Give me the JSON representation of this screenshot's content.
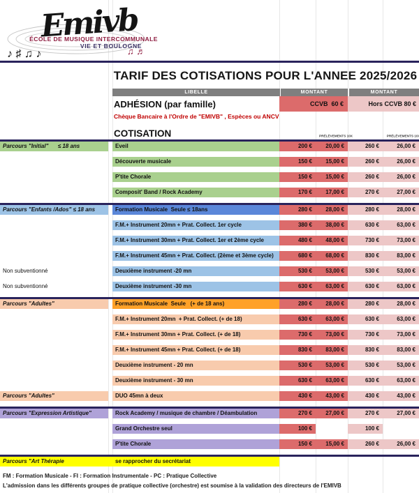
{
  "logo": {
    "script": "Emivb",
    "line1": "ÉCOLE DE MUSIQUE INTERCOMMUNALE",
    "line2": "VIE ET BOULOGNE",
    "notes_black": "♪ ♯  ♫ ♪",
    "notes_maroon": "♫ ♬"
  },
  "title": "TARIF DES COTISATIONS POUR L'ANNEE 2025/2026",
  "header": {
    "libelle": "LIBELLE",
    "montant1": "MONTANT",
    "montant2": "MONTANT"
  },
  "adhesion": {
    "label": "ADHÉSION (par famille)",
    "ccvb": "CCVB  60 €",
    "hors_ccvb": "Hors CCVB 80 €",
    "note": "Chèque Bancaire à l'Ordre de \"EMIVB\" , Espèces ou ANCV"
  },
  "cotisation": {
    "label": "COTISATION",
    "prelevements": "PRÉLÈVEMENTS 10X"
  },
  "colors": {
    "navy_border": "#29235C",
    "header_gray": "#7F7F7F",
    "ccvb_cell": "#DC6B6B",
    "hors_cell": "#EDC7C7",
    "green": "#A9D08E",
    "blue_dark": "#5B87D9",
    "blue_light": "#9DC3E6",
    "orange_dark": "#FFA128",
    "orange_light": "#F8CBAD",
    "purple": "#AFA2D8",
    "yellow": "#FFFF00",
    "note_red": "#C00000"
  },
  "sections": [
    {
      "id": "parcours-initial",
      "divider": true,
      "rows": [
        {
          "label": "Parcours \"Initial\"      ≤ 18 ans",
          "label_bg": "#A9D08E",
          "libelle": "Eveil",
          "bg": "#A9D08E",
          "values": [
            "200 €",
            "20,00 €",
            "260 €",
            "26,00 €"
          ]
        },
        {
          "label": "",
          "libelle": "Découverte musicale",
          "bg": "#A9D08E",
          "values": [
            "150 €",
            "15,00 €",
            "260 €",
            "26,00 €"
          ]
        },
        {
          "label": "",
          "libelle": "P'tite Chorale",
          "bg": "#A9D08E",
          "values": [
            "150 €",
            "15,00 €",
            "260 €",
            "26,00 €"
          ]
        },
        {
          "label": "",
          "libelle": "Composit' Band / Rock Academy",
          "bg": "#A9D08E",
          "values": [
            "170 €",
            "17,00 €",
            "270 €",
            "27,00 €"
          ]
        }
      ]
    },
    {
      "id": "parcours-enfants-ados",
      "divider": true,
      "rows": [
        {
          "label": "Parcours \"Enfants /Ados\" ≤ 18 ans",
          "label_bg": "#9DC3E6",
          "libelle": "Formation Musicale  Seule ≤ 18ans",
          "bg": "#5B87D9",
          "values": [
            "280 €",
            "28,00 €",
            "280 €",
            "28,00 €"
          ]
        },
        {
          "label": "",
          "libelle": "F.M.+ Instrument 20mn + Prat. Collect. 1er cycle",
          "bg": "#9DC3E6",
          "values": [
            "380 €",
            "38,00 €",
            "630 €",
            "63,00 €"
          ]
        },
        {
          "label": "",
          "libelle": "F.M.+ Instrument 30mn + Prat. Collect. 1er et 2ème cycle",
          "bg": "#9DC3E6",
          "values": [
            "480 €",
            "48,00 €",
            "730 €",
            "73,00 €"
          ]
        },
        {
          "label": "",
          "libelle": "F.M.+ Instrument 45mn + Prat. Collect. (2ème et 3ème cycle)",
          "bg": "#9DC3E6",
          "values": [
            "680 €",
            "68,00 €",
            "830 €",
            "83,00 €"
          ]
        },
        {
          "label": "Non subventionné",
          "plain": true,
          "libelle": "Deuxième instrument -20 mn",
          "bg": "#9DC3E6",
          "values": [
            "530 €",
            "53,00 €",
            "530 €",
            "53,00 €"
          ]
        },
        {
          "label": "Non subventionné",
          "plain": true,
          "libelle": "Deuxième instrument -30 mn",
          "bg": "#9DC3E6",
          "values": [
            "630 €",
            "63,00 €",
            "630 €",
            "63,00 €"
          ]
        }
      ]
    },
    {
      "id": "parcours-adultes",
      "divider": true,
      "rows": [
        {
          "label": "Parcours \"Adultes\"",
          "label_bg": "#F8CBAD",
          "libelle": "Formation Musicale  Seule   (+ de 18 ans)",
          "bg": "#FFA128",
          "values": [
            "280 €",
            "28,00 €",
            "280 €",
            "28,00 €"
          ]
        },
        {
          "label": "",
          "libelle": "F.M.+ Instrument 20mn  + Prat. Collect. (+ de 18)",
          "bg": "#F8CBAD",
          "values": [
            "630 €",
            "63,00 €",
            "630 €",
            "63,00 €"
          ]
        },
        {
          "label": "",
          "libelle": "F.M.+ Instrument 30mn + Prat. Collect. (+ de 18)",
          "bg": "#F8CBAD",
          "values": [
            "730 €",
            "73,00 €",
            "730 €",
            "73,00 €"
          ]
        },
        {
          "label": "",
          "libelle": "F.M.+ Instrument 45mn + Prat. Collect. (+ de 18)",
          "bg": "#F8CBAD",
          "values": [
            "830 €",
            "83,00 €",
            "830 €",
            "83,00 €"
          ]
        },
        {
          "label": "",
          "libelle": "Deuxième instrument - 20 mn",
          "bg": "#F8CBAD",
          "values": [
            "530 €",
            "53,00 €",
            "530 €",
            "53,00 €"
          ]
        },
        {
          "label": "",
          "libelle": "Deuxième instrument - 30 mn",
          "bg": "#F8CBAD",
          "values": [
            "630 €",
            "63,00 €",
            "630 €",
            "63,00 €"
          ]
        }
      ]
    },
    {
      "id": "parcours-adultes-duo",
      "divider": false,
      "rows": [
        {
          "label": "Parcours \"Adultes\"",
          "label_bg": "#F8CBAD",
          "libelle": "DUO 45mn à deux",
          "bg": "#F8CBAD",
          "values": [
            "430 €",
            "43,00 €",
            "430 €",
            "43,00 €"
          ]
        }
      ]
    },
    {
      "id": "parcours-expression-artistique",
      "divider": true,
      "rows": [
        {
          "label": "Parcours \"Expression Artistique\"",
          "label_bg": "#AFA2D8",
          "libelle": "Rock Academy / musique de chambre / Déambulation",
          "bg": "#AFA2D8",
          "values": [
            "270 €",
            "27,00 €",
            "270 €",
            "27,00 €"
          ]
        },
        {
          "label": "",
          "libelle": "Grand Orchestre seul",
          "bg": "#AFA2D8",
          "values": [
            "100 €",
            "",
            "100 €",
            ""
          ]
        },
        {
          "label": "",
          "libelle": "P'tite Chorale",
          "bg": "#AFA2D8",
          "values": [
            "150 €",
            "15,00 €",
            "260 €",
            "26,00 €"
          ]
        }
      ]
    },
    {
      "id": "parcours-art-therapie",
      "divider": true,
      "rows": [
        {
          "label": "Parcours \"Art Thérapie",
          "label_bg": "#FFFF00",
          "gap_bg": "#FFFF00",
          "libelle": "se rapprocher du secrétariat",
          "bg": "#FFFF00",
          "values": [
            "",
            "",
            "",
            ""
          ]
        }
      ]
    }
  ],
  "footer": {
    "line1": "FM : Formation Musicale - FI : Formation Instrumentale - PC : Pratique Collective",
    "line2": "L'admission dans les différents groupes de pratique collective (orchestre) est soumise à la validation des directeurs de l'EMIVB"
  }
}
